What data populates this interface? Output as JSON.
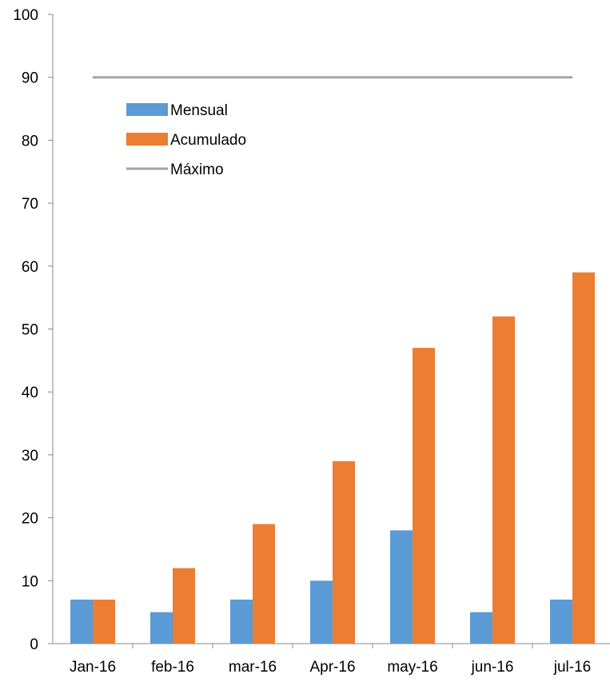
{
  "chart_data": {
    "type": "bar",
    "categories": [
      "Jan-16",
      "feb-16",
      "mar-16",
      "Apr-16",
      "may-16",
      "jun-16",
      "jul-16"
    ],
    "series": [
      {
        "name": "Mensual",
        "type": "bar",
        "color": "#5B9BD5",
        "values": [
          7,
          5,
          7,
          10,
          18,
          5,
          7
        ]
      },
      {
        "name": "Acumulado",
        "type": "bar",
        "color": "#ED7D31",
        "values": [
          7,
          12,
          19,
          29,
          47,
          52,
          59
        ]
      },
      {
        "name": "Máximo",
        "type": "line",
        "color": "#A5A5A5",
        "values": [
          90,
          90,
          90,
          90,
          90,
          90,
          90
        ]
      }
    ],
    "title": "",
    "xlabel": "",
    "ylabel": "",
    "ylim": [
      0,
      100
    ],
    "yticks": [
      0,
      10,
      20,
      30,
      40,
      50,
      60,
      70,
      80,
      90,
      100
    ],
    "grid": false,
    "legend_position": "top-left"
  }
}
